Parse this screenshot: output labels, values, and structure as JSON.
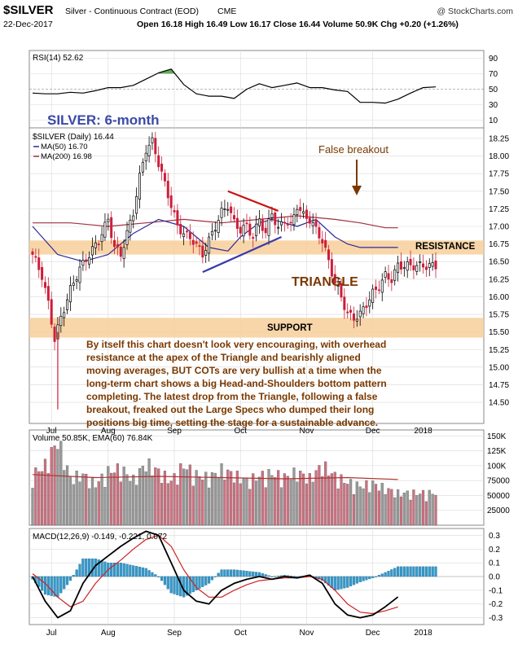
{
  "header": {
    "symbol": "$SILVER",
    "name": "Silver - Continuous Contract (EOD)",
    "exchange": "CME",
    "watermark": "@ StockCharts.com",
    "date": "22-Dec-2017",
    "ohlc": "Open 16.18  High 16.49  Low 16.17  Close 16.44  Volume 50.9K  Chg +0.20 (+1.26%)"
  },
  "colors": {
    "panel_bg": "#ffffff",
    "grid": "#d9d9d9",
    "up_candle": "#000000",
    "down_candle": "#cc1f3a",
    "ma50": "#2a2a9a",
    "ma200": "#a03040",
    "band": "#f7cf9a",
    "annotation_brown": "#7a3800",
    "title_blue": "#3a4aa8",
    "rsi_line": "#000000",
    "rsi_fill": "#66aa55",
    "vol_up": "#999999",
    "vol_down": "#d07080",
    "macd": "#000000",
    "signal": "#cc2222",
    "histogram": "#3399cc"
  },
  "annotations": {
    "chart_title": "SILVER: 6-month",
    "false_breakout": "False breakout",
    "resistance": "RESISTANCE",
    "triangle": "TRIANGLE",
    "support": "SUPPORT",
    "commentary": [
      "By itself this chart doesn't look very encouraging, with overhead",
      "resistance at the apex of the Triangle and bearishly aligned",
      "moving averages, BUT COTs are very bullish at a time when the",
      "long-term chart shows a big Head-and-Shoulders bottom pattern",
      "completing. The latest drop from the Triangle, following a false",
      "breakout, freaked out the Large Specs who dumped their long",
      "positions big time, setting the stage for a sustainable advance."
    ]
  },
  "chart_data": [
    {
      "panel": "rsi",
      "type": "line",
      "legend": "RSI(14) 52.62",
      "ylim": [
        0,
        100
      ],
      "yticks": [
        10,
        30,
        50,
        70,
        90
      ],
      "x": [
        0,
        4,
        8,
        12,
        16,
        20,
        24,
        28,
        32,
        36,
        40,
        44,
        48,
        52,
        56,
        60,
        64,
        68,
        72,
        76,
        80,
        84,
        88,
        92,
        96,
        100,
        104,
        108,
        112,
        116,
        120,
        124,
        128
      ],
      "values": [
        45,
        44,
        44,
        46,
        45,
        48,
        52,
        52,
        55,
        63,
        71,
        76,
        56,
        44,
        41,
        41,
        38,
        50,
        57,
        52,
        55,
        58,
        52,
        52,
        49,
        47,
        33,
        33,
        32,
        37,
        45,
        52,
        53
      ]
    },
    {
      "panel": "price",
      "type": "candlestick",
      "legend": [
        "$SILVER (Daily) 16.44",
        "MA(50) 16.70",
        "MA(200) 16.98"
      ],
      "ylim": [
        14.2,
        18.4
      ],
      "yticks": [
        14.5,
        14.75,
        15.0,
        15.25,
        15.5,
        15.75,
        16.0,
        16.25,
        16.5,
        16.75,
        17.0,
        17.25,
        17.5,
        17.75,
        18.0,
        18.25
      ],
      "x_labels": [
        "Jul",
        "Aug",
        "Sep",
        "Oct",
        "Nov",
        "Dec",
        "2018"
      ],
      "close_path_x": [
        0,
        3,
        5,
        7,
        9,
        12,
        15,
        18,
        21,
        24,
        26,
        28,
        30,
        32,
        34,
        36,
        38,
        40,
        42,
        44,
        46,
        48,
        51,
        54,
        57,
        60,
        62,
        64,
        66,
        68,
        70,
        72,
        74,
        76,
        78,
        80,
        82,
        84,
        86,
        88,
        90,
        92,
        94,
        96,
        98,
        100,
        102,
        104,
        106,
        108,
        110,
        112,
        114,
        116,
        118,
        120,
        122,
        124,
        126,
        128
      ],
      "close_path": [
        16.6,
        16.3,
        15.9,
        15.4,
        15.7,
        16.1,
        16.4,
        16.6,
        16.8,
        17.1,
        16.7,
        16.6,
        16.9,
        17.2,
        17.7,
        18.1,
        18.2,
        17.9,
        17.6,
        17.3,
        17.0,
        16.9,
        16.8,
        16.6,
        16.9,
        17.2,
        17.3,
        17.05,
        16.95,
        17.0,
        16.85,
        17.1,
        16.9,
        17.2,
        16.95,
        17.1,
        17.0,
        17.3,
        17.15,
        17.1,
        16.95,
        16.8,
        16.5,
        16.2,
        16.0,
        15.75,
        15.7,
        15.75,
        15.9,
        16.05,
        16.15,
        16.3,
        16.25,
        16.44,
        16.44,
        16.44,
        16.44,
        16.44,
        16.44,
        16.44
      ],
      "ma50_x": [
        0,
        8,
        16,
        24,
        32,
        40,
        48,
        56,
        62,
        66,
        72,
        76,
        80,
        84,
        90,
        96,
        100,
        104,
        108,
        112,
        116
      ],
      "ma50": [
        17.0,
        16.6,
        16.5,
        16.6,
        16.9,
        17.1,
        17.0,
        16.7,
        16.65,
        16.85,
        17.05,
        17.1,
        17.05,
        17.0,
        17.1,
        16.85,
        16.75,
        16.7,
        16.7,
        16.7,
        16.7
      ],
      "ma200_x": [
        0,
        12,
        24,
        36,
        48,
        60,
        72,
        84,
        96,
        104,
        112,
        116
      ],
      "ma200": [
        17.05,
        17.05,
        17.0,
        17.05,
        17.1,
        17.05,
        17.1,
        17.15,
        17.1,
        17.05,
        16.98,
        16.98
      ],
      "resistance_band": [
        16.6,
        16.8
      ],
      "support_band": [
        15.42,
        15.7
      ],
      "triangle_upper": [
        [
          62,
          17.5
        ],
        [
          78,
          17.22
        ]
      ],
      "triangle_lower": [
        [
          54,
          16.35
        ],
        [
          79,
          16.85
        ]
      ]
    },
    {
      "panel": "volume",
      "type": "bar",
      "legend": "Volume 50.85K, EMA(60) 76.84K",
      "ylim": [
        0,
        160000
      ],
      "ytick_labels": [
        "25000",
        "50000",
        "75000",
        "100K",
        "125K",
        "150K"
      ],
      "yticks": [
        25000,
        50000,
        75000,
        100000,
        125000,
        150000
      ],
      "x": [
        0,
        4,
        8,
        12,
        16,
        20,
        24,
        28,
        32,
        36,
        40,
        44,
        48,
        52,
        56,
        60,
        64,
        68,
        72,
        76,
        80,
        84,
        88,
        92,
        96,
        100,
        104,
        108,
        112,
        116
      ],
      "values": [
        80000,
        95000,
        135000,
        75000,
        80000,
        65000,
        85000,
        90000,
        72000,
        98000,
        85000,
        70000,
        95000,
        80000,
        75000,
        88000,
        80000,
        70000,
        78000,
        82000,
        76000,
        84000,
        74000,
        95000,
        78000,
        68000,
        62000,
        66000,
        58000,
        50850
      ],
      "ema_x": [
        0,
        20,
        40,
        60,
        80,
        100,
        116
      ],
      "ema": [
        85000,
        80000,
        82000,
        80000,
        78000,
        80000,
        76840
      ]
    },
    {
      "panel": "macd",
      "type": "line",
      "legend": "MACD(12,26,9) -0.149, -0.221, 0.072",
      "ylim": [
        -0.35,
        0.35
      ],
      "yticks": [
        -0.3,
        -0.2,
        -0.1,
        0.0,
        0.1,
        0.2,
        0.3
      ],
      "x": [
        0,
        4,
        8,
        12,
        16,
        20,
        24,
        28,
        32,
        36,
        40,
        44,
        48,
        52,
        56,
        60,
        64,
        68,
        72,
        76,
        80,
        84,
        88,
        92,
        96,
        100,
        104,
        108,
        112,
        116
      ],
      "macd": [
        0.0,
        -0.18,
        -0.3,
        -0.25,
        -0.05,
        0.08,
        0.15,
        0.22,
        0.28,
        0.33,
        0.3,
        0.1,
        -0.1,
        -0.18,
        -0.2,
        -0.1,
        -0.05,
        -0.02,
        0.0,
        -0.02,
        0.0,
        -0.01,
        0.01,
        -0.05,
        -0.2,
        -0.28,
        -0.3,
        -0.28,
        -0.22,
        -0.149
      ],
      "signal": [
        0.02,
        -0.05,
        -0.15,
        -0.22,
        -0.18,
        -0.05,
        0.05,
        0.12,
        0.2,
        0.27,
        0.3,
        0.22,
        0.05,
        -0.08,
        -0.15,
        -0.15,
        -0.1,
        -0.06,
        -0.03,
        -0.02,
        -0.01,
        -0.01,
        0.0,
        -0.02,
        -0.1,
        -0.2,
        -0.26,
        -0.27,
        -0.25,
        -0.221
      ]
    }
  ]
}
